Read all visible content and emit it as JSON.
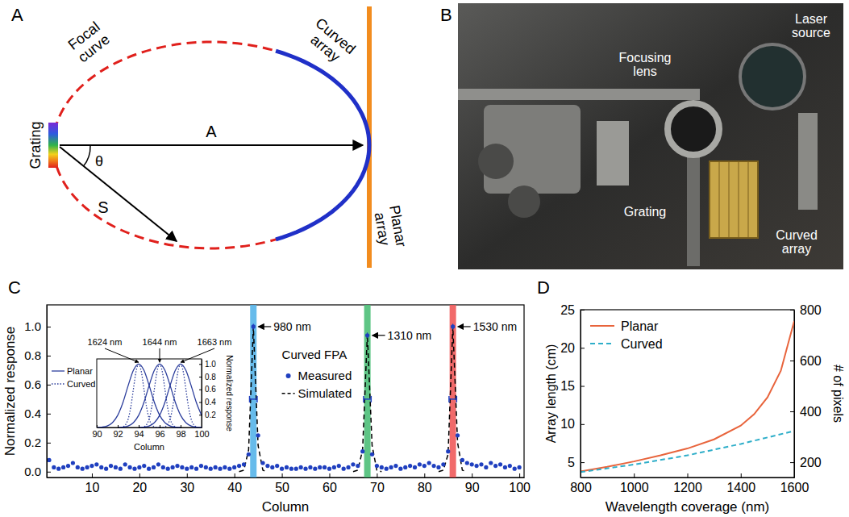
{
  "diagram": {
    "panel_label": "A",
    "labels": {
      "grating": "Grating",
      "focal_curve": "Focal curve",
      "curved_array": "Curved array",
      "planar_array": "Planar array",
      "a": "A",
      "s": "S",
      "theta": "θ"
    }
  },
  "photo": {
    "panel_label": "B",
    "labels": {
      "focusing_lens": "Focusing lens",
      "laser_source": "Laser source",
      "grating": "Grating",
      "curved_array": "Curved array"
    }
  },
  "chart_data": [
    {
      "type": "scatter",
      "panel_label": "C",
      "x_label": "Column",
      "y_label": "Normalized response",
      "xlim": [
        0.5,
        101
      ],
      "xticks": [
        10,
        20,
        30,
        40,
        50,
        60,
        70,
        80,
        90,
        100
      ],
      "ylim": [
        -0.04,
        1.15
      ],
      "yticks": [
        {
          "value": 0,
          "label": "0.0"
        },
        {
          "value": 0.2,
          "label": "0.2"
        },
        {
          "value": 0.4,
          "label": "0.4"
        },
        {
          "value": 0.6,
          "label": "0.6"
        },
        {
          "value": 0.8,
          "label": "0.8"
        },
        {
          "value": 1,
          "label": "1.0"
        }
      ],
      "legend": "top",
      "legend_title": "Curved FPA",
      "series": [
        {
          "name": "Measured",
          "type": "scatter",
          "marker": "circle",
          "color": "#1f3fbf",
          "x": [
            1,
            2,
            3,
            4,
            5,
            6,
            7,
            8,
            9,
            10,
            11,
            12,
            13,
            14,
            15,
            16,
            17,
            18,
            19,
            20,
            21,
            22,
            23,
            24,
            25,
            26,
            27,
            28,
            29,
            30,
            31,
            32,
            33,
            34,
            35,
            36,
            37,
            38,
            39,
            40,
            41,
            42,
            43,
            44,
            45,
            46,
            47,
            48,
            49,
            50,
            51,
            52,
            53,
            54,
            55,
            56,
            57,
            58,
            59,
            60,
            61,
            62,
            63,
            64,
            65,
            66,
            67,
            68,
            69,
            70,
            71,
            72,
            73,
            74,
            75,
            76,
            77,
            78,
            79,
            80,
            81,
            82,
            83,
            84,
            85,
            86,
            87,
            88,
            89,
            90,
            91,
            92,
            93,
            94,
            95,
            96,
            97,
            98,
            99,
            100
          ],
          "values": [
            0.08,
            0.03,
            0.02,
            0.03,
            0.04,
            0.06,
            0.03,
            0.02,
            0.03,
            0.04,
            0.05,
            0.03,
            0.02,
            0.04,
            0.03,
            0.02,
            0.05,
            0.03,
            0.02,
            0.03,
            0.04,
            0.02,
            0.03,
            0.05,
            0.03,
            0.02,
            0.03,
            0.04,
            0.03,
            0.02,
            0.03,
            0.02,
            0.04,
            0.03,
            0.02,
            0.03,
            0.02,
            0.03,
            0.02,
            0.03,
            0.04,
            0.05,
            0.12,
            1.0,
            0.25,
            0.06,
            0.04,
            0.03,
            0.04,
            0.02,
            0.03,
            0.02,
            0.02,
            0.03,
            0.02,
            0.03,
            0.02,
            0.03,
            0.03,
            0.02,
            0.03,
            0.04,
            0.02,
            0.03,
            0.05,
            0.04,
            0.14,
            0.94,
            0.12,
            0.04,
            0.03,
            0.02,
            0.03,
            0.04,
            0.02,
            0.03,
            0.04,
            0.03,
            0.05,
            0.04,
            0.06,
            0.04,
            0.03,
            0.05,
            0.14,
            1.0,
            0.25,
            0.08,
            0.06,
            0.05,
            0.04,
            0.05,
            0.03,
            0.06,
            0.04,
            0.05,
            0.03,
            0.04,
            0.02,
            0.03
          ],
          "errors": [
            0.01,
            0.01,
            0.01,
            0.01,
            0.01,
            0.01,
            0.01,
            0.01,
            0.01,
            0.01,
            0.01,
            0.01,
            0.01,
            0.01,
            0.01,
            0.01,
            0.01,
            0.01,
            0.01,
            0.01,
            0.01,
            0.01,
            0.01,
            0.01,
            0.01,
            0.01,
            0.01,
            0.01,
            0.01,
            0.01,
            0.01,
            0.01,
            0.01,
            0.01,
            0.01,
            0.01,
            0.01,
            0.01,
            0.01,
            0.01,
            0.01,
            0.01,
            0.01,
            0.02,
            0.01,
            0.01,
            0.01,
            0.01,
            0.01,
            0.01,
            0.01,
            0.01,
            0.01,
            0.01,
            0.01,
            0.01,
            0.01,
            0.01,
            0.01,
            0.01,
            0.01,
            0.01,
            0.01,
            0.01,
            0.01,
            0.01,
            0.01,
            0.02,
            0.01,
            0.01,
            0.01,
            0.01,
            0.01,
            0.01,
            0.01,
            0.01,
            0.01,
            0.01,
            0.01,
            0.01,
            0.01,
            0.01,
            0.01,
            0.01,
            0.01,
            0.02,
            0.01,
            0.01,
            0.01,
            0.01,
            0.01,
            0.01,
            0.01,
            0.01,
            0.01,
            0.01,
            0.01,
            0.01,
            0.01,
            0.01
          ]
        },
        {
          "name": "Simulated",
          "type": "line",
          "line_style": "dashed",
          "color": "#000000",
          "x": [
            41,
            42,
            43,
            44,
            45,
            46,
            47,
            56,
            65,
            66,
            67,
            68,
            69,
            70,
            71,
            77,
            83,
            84,
            85,
            86,
            87,
            88,
            89
          ],
          "values": [
            0,
            0.01,
            0.15,
            1.0,
            0.18,
            0.01,
            0,
            null,
            0,
            0.01,
            0.15,
            0.95,
            0.18,
            0.01,
            0,
            null,
            0,
            0.01,
            0.12,
            1.0,
            0.2,
            0.01,
            0
          ]
        }
      ],
      "bands": [
        {
          "x": 44,
          "label": "980 nm",
          "color": "#55b4e9"
        },
        {
          "x": 68,
          "label": "1310 nm",
          "color": "#4cbf78"
        },
        {
          "x": 86,
          "label": "1530 nm",
          "color": "#f05a5a"
        }
      ],
      "fwhm": [
        {
          "center": 44,
          "value": 0.5,
          "error": 0.8
        },
        {
          "center": 68,
          "value": 0.5,
          "error": 0.8
        },
        {
          "center": 86,
          "value": 0.5,
          "error": 0.8
        }
      ]
    },
    {
      "type": "line",
      "x_label": "Column",
      "y_label": "Normalized response",
      "xlim": [
        90,
        100
      ],
      "xticks": [
        90,
        92,
        94,
        96,
        98,
        100
      ],
      "ylim": [
        0,
        1.08
      ],
      "yticks": [
        {
          "value": 0.2,
          "label": "0.2"
        },
        {
          "value": 0.4,
          "label": "0.4"
        },
        {
          "value": 0.6,
          "label": "0.6"
        },
        {
          "value": 0.8,
          "label": "0.8"
        },
        {
          "value": 1,
          "label": "1.0"
        }
      ],
      "legend": "left",
      "series": [
        {
          "name": "Planar",
          "line_style": "solid",
          "color": "#2c3e9c",
          "curves": [
            {
              "x": [
                90,
                90.5,
                91,
                91.5,
                92,
                92.5,
                93,
                93.5,
                94,
                94.5,
                95,
                95.5,
                96,
                96.5,
                97,
                97.5,
                98
              ],
              "values": [
                0.001,
                0.006,
                0.024,
                0.076,
                0.192,
                0.395,
                0.662,
                0.902,
                1,
                0.902,
                0.662,
                0.395,
                0.192,
                0.076,
                0.024,
                0.006,
                0.001
              ]
            },
            {
              "x": [
                92,
                92.5,
                93,
                93.5,
                94,
                94.5,
                95,
                95.5,
                96,
                96.5,
                97,
                97.5,
                98,
                98.5,
                99,
                99.5,
                100
              ],
              "values": [
                0.001,
                0.006,
                0.024,
                0.076,
                0.192,
                0.395,
                0.662,
                0.902,
                1,
                0.902,
                0.662,
                0.395,
                0.192,
                0.076,
                0.024,
                0.006,
                0.001
              ]
            },
            {
              "x": [
                94,
                94.5,
                95,
                95.5,
                96,
                96.5,
                97,
                97.5,
                98,
                98.5,
                99,
                99.5,
                100
              ],
              "values": [
                0.001,
                0.006,
                0.024,
                0.076,
                0.192,
                0.395,
                0.662,
                0.902,
                1,
                0.902,
                0.662,
                0.395,
                0.192
              ]
            }
          ]
        },
        {
          "name": "Curved",
          "line_style": "dotted",
          "color": "#2c3e9c",
          "curves": [
            {
              "x": [
                92,
                92.25,
                92.5,
                92.75,
                93,
                93.25,
                93.5,
                93.75,
                94,
                94.25,
                94.5,
                94.75,
                95,
                95.25,
                95.5,
                95.75,
                96
              ],
              "values": [
                0,
                0.002,
                0.011,
                0.044,
                0.135,
                0.325,
                0.607,
                0.882,
                1,
                0.882,
                0.607,
                0.325,
                0.135,
                0.044,
                0.011,
                0.002,
                0
              ]
            },
            {
              "x": [
                94,
                94.25,
                94.5,
                94.75,
                95,
                95.25,
                95.5,
                95.75,
                96,
                96.25,
                96.5,
                96.75,
                97,
                97.25,
                97.5,
                97.75,
                98
              ],
              "values": [
                0,
                0.002,
                0.011,
                0.044,
                0.135,
                0.325,
                0.607,
                0.882,
                1,
                0.882,
                0.607,
                0.325,
                0.135,
                0.044,
                0.011,
                0.002,
                0
              ]
            },
            {
              "x": [
                96,
                96.25,
                96.5,
                96.75,
                97,
                97.25,
                97.5,
                97.75,
                98,
                98.25,
                98.5,
                98.75,
                99,
                99.25,
                99.5,
                99.75,
                100
              ],
              "values": [
                0,
                0.002,
                0.011,
                0.044,
                0.135,
                0.325,
                0.607,
                0.882,
                1,
                0.882,
                0.607,
                0.325,
                0.135,
                0.044,
                0.011,
                0.002,
                0
              ]
            }
          ]
        }
      ],
      "annotations": [
        {
          "x": 94,
          "value": 1,
          "text": "1624 nm"
        },
        {
          "x": 96,
          "value": 1,
          "text": "1644 nm"
        },
        {
          "x": 98,
          "value": 1,
          "text": "1663 nm"
        }
      ]
    },
    {
      "type": "line",
      "panel_label": "D",
      "x_label": "Wavelength coverage (nm)",
      "y_label": "Array length (cm)",
      "y2_label": "# of pixels",
      "xlim": [
        800,
        1600
      ],
      "xticks": [
        800,
        1000,
        1200,
        1400,
        1600
      ],
      "ylim": [
        3,
        25
      ],
      "yticks": [
        5,
        10,
        15,
        20,
        25
      ],
      "y2lim": [
        140,
        800
      ],
      "y2ticks": [
        200,
        400,
        600,
        800
      ],
      "legend": "upper left",
      "series": [
        {
          "name": "Planar",
          "line_style": "solid",
          "color": "#e8643c",
          "x": [
            800,
            900,
            1000,
            1100,
            1200,
            1300,
            1400,
            1450,
            1500,
            1550,
            1600
          ],
          "values": [
            3.8,
            4.4,
            5.1,
            5.9,
            6.8,
            8.0,
            9.8,
            11.3,
            13.5,
            17.0,
            23.5
          ]
        },
        {
          "name": "Curved",
          "line_style": "dashed",
          "color": "#2eaec9",
          "x": [
            800,
            1000,
            1200,
            1400,
            1600
          ],
          "values": [
            3.7,
            4.7,
            5.9,
            7.4,
            9.1
          ]
        }
      ]
    }
  ]
}
